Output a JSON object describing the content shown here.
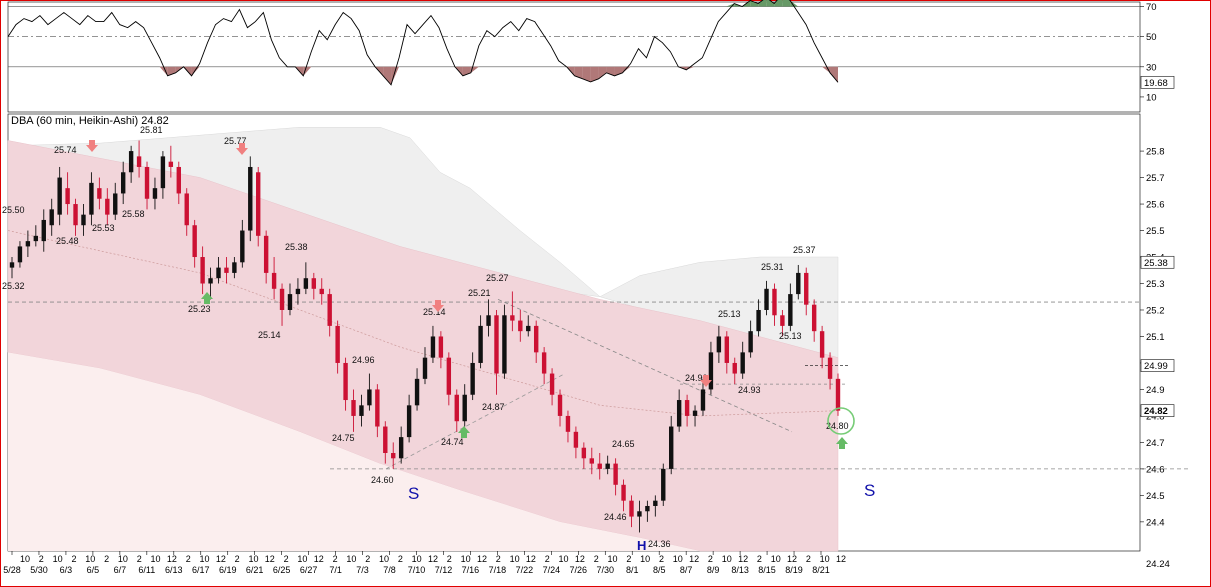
{
  "chart_data": {
    "type": "candlestick",
    "title": "DBA (60 min, Heikin-Ashi) 24.82",
    "last_price": 24.82,
    "price_axis": {
      "ticks": [
        24.4,
        24.5,
        24.6,
        24.7,
        24.8,
        24.9,
        25.0,
        25.1,
        25.2,
        25.3,
        25.4,
        25.5,
        25.6,
        25.7,
        25.8
      ],
      "ylim": [
        24.29,
        25.94
      ],
      "bottom_label": "24.24",
      "tags": [
        {
          "label": "25.38",
          "value": 25.38,
          "color": "#ffffff"
        },
        {
          "label": "24.99",
          "value": 24.99,
          "color": "#ffffff"
        },
        {
          "label": "24.82",
          "value": 24.82,
          "color": "#ffffff"
        }
      ]
    },
    "x_axis": {
      "hour_labels": [
        "10",
        "2",
        "10",
        "2",
        "10",
        "2",
        "10",
        "2",
        "10",
        "12",
        "2",
        "10",
        "12",
        "2",
        "10",
        "12",
        "2",
        "10",
        "12",
        "2",
        "10",
        "2",
        "10",
        "2",
        "10",
        "12",
        "2",
        "10",
        "12",
        "2",
        "10",
        "12",
        "2",
        "10",
        "12",
        "2",
        "10",
        "2",
        "10",
        "2",
        "10",
        "12",
        "2",
        "10",
        "12",
        "2",
        "10",
        "12",
        "2",
        "10",
        "12"
      ],
      "date_labels": [
        "5/28",
        "5/30",
        "6/3",
        "6/5",
        "6/7",
        "6/11",
        "6/13",
        "6/17",
        "6/19",
        "6/21",
        "6/25",
        "6/27",
        "7/1",
        "7/3",
        "7/8",
        "7/10",
        "7/12",
        "7/16",
        "7/18",
        "7/22",
        "7/24",
        "7/26",
        "7/30",
        "8/1",
        "8/5",
        "8/7",
        "8/9",
        "8/13",
        "8/15",
        "8/19",
        "8/21"
      ]
    },
    "annotations": [
      {
        "text": "25.50",
        "value": 25.5
      },
      {
        "text": "25.32",
        "value": 25.32
      },
      {
        "text": "25.74",
        "value": 25.74
      },
      {
        "text": "25.48",
        "value": 25.48
      },
      {
        "text": "25.53",
        "value": 25.53
      },
      {
        "text": "25.81",
        "value": 25.81
      },
      {
        "text": "25.58",
        "value": 25.58
      },
      {
        "text": "25.23",
        "value": 25.23
      },
      {
        "text": "25.77",
        "value": 25.77
      },
      {
        "text": "25.38",
        "value": 25.38
      },
      {
        "text": "25.14",
        "value": 25.14
      },
      {
        "text": "24.96",
        "value": 24.96
      },
      {
        "text": "24.75",
        "value": 24.75
      },
      {
        "text": "24.60",
        "value": 24.6
      },
      {
        "text": "25.14",
        "value": 25.14
      },
      {
        "text": "24.74",
        "value": 24.74
      },
      {
        "text": "25.21",
        "value": 25.21
      },
      {
        "text": "25.27",
        "value": 25.27
      },
      {
        "text": "24.87",
        "value": 24.87
      },
      {
        "text": "24.65",
        "value": 24.65
      },
      {
        "text": "24.46",
        "value": 24.46
      },
      {
        "text": "24.36",
        "value": 24.36
      },
      {
        "text": "24.90",
        "value": 24.9
      },
      {
        "text": "25.13",
        "value": 25.13
      },
      {
        "text": "24.93",
        "value": 24.93
      },
      {
        "text": "25.31",
        "value": 25.31
      },
      {
        "text": "25.13",
        "value": 25.13
      },
      {
        "text": "25.37",
        "value": 25.37
      },
      {
        "text": "24.80",
        "value": 24.8
      }
    ],
    "pattern_labels": [
      "S",
      "S",
      "H"
    ],
    "support_line": 24.6,
    "resistance_line": 25.23,
    "rsi": {
      "name": "RSI",
      "ticks": [
        10,
        30,
        50,
        70
      ],
      "ylim": [
        0,
        73
      ],
      "last_value_label": "19.68",
      "last_value": 19.68,
      "values": [
        50,
        58,
        62,
        60,
        64,
        58,
        62,
        66,
        62,
        58,
        64,
        60,
        60,
        66,
        58,
        56,
        60,
        56,
        46,
        36,
        24,
        26,
        30,
        24,
        32,
        46,
        58,
        62,
        60,
        68,
        56,
        60,
        66,
        48,
        36,
        30,
        30,
        24,
        40,
        54,
        48,
        58,
        66,
        62,
        54,
        38,
        30,
        24,
        18,
        36,
        58,
        52,
        58,
        64,
        56,
        42,
        30,
        24,
        26,
        44,
        54,
        50,
        56,
        60,
        54,
        62,
        60,
        52,
        44,
        34,
        30,
        24,
        22,
        20,
        22,
        26,
        24,
        26,
        32,
        42,
        36,
        50,
        46,
        40,
        30,
        28,
        32,
        36,
        48,
        60,
        66,
        72,
        70,
        74,
        72,
        76,
        72,
        78,
        74,
        66,
        58,
        46,
        36,
        26,
        19.68
      ]
    },
    "ohlc": [
      [
        25.36,
        25.4,
        25.32,
        25.38
      ],
      [
        25.38,
        25.46,
        25.36,
        25.44
      ],
      [
        25.44,
        25.5,
        25.4,
        25.46
      ],
      [
        25.46,
        25.52,
        25.44,
        25.48
      ],
      [
        25.46,
        25.58,
        25.42,
        25.54
      ],
      [
        25.52,
        25.62,
        25.48,
        25.58
      ],
      [
        25.56,
        25.74,
        25.52,
        25.7
      ],
      [
        25.66,
        25.72,
        25.56,
        25.6
      ],
      [
        25.6,
        25.62,
        25.48,
        25.52
      ],
      [
        25.52,
        25.6,
        25.48,
        25.56
      ],
      [
        25.56,
        25.72,
        25.52,
        25.68
      ],
      [
        25.66,
        25.7,
        25.58,
        25.62
      ],
      [
        25.62,
        25.66,
        25.52,
        25.56
      ],
      [
        25.56,
        25.68,
        25.54,
        25.64
      ],
      [
        25.64,
        25.76,
        25.6,
        25.72
      ],
      [
        25.72,
        25.82,
        25.68,
        25.8
      ],
      [
        25.78,
        25.84,
        25.7,
        25.74
      ],
      [
        25.74,
        25.76,
        25.58,
        25.62
      ],
      [
        25.62,
        25.7,
        25.58,
        25.66
      ],
      [
        25.66,
        25.8,
        25.62,
        25.78
      ],
      [
        25.76,
        25.82,
        25.7,
        25.74
      ],
      [
        25.74,
        25.76,
        25.6,
        25.64
      ],
      [
        25.64,
        25.66,
        25.48,
        25.52
      ],
      [
        25.52,
        25.54,
        25.36,
        25.4
      ],
      [
        25.4,
        25.44,
        25.26,
        25.3
      ],
      [
        25.3,
        25.36,
        25.24,
        25.32
      ],
      [
        25.32,
        25.4,
        25.3,
        25.36
      ],
      [
        25.36,
        25.4,
        25.3,
        25.34
      ],
      [
        25.34,
        25.4,
        25.32,
        25.38
      ],
      [
        25.38,
        25.54,
        25.36,
        25.5
      ],
      [
        25.5,
        25.78,
        25.46,
        25.74
      ],
      [
        25.72,
        25.74,
        25.44,
        25.48
      ],
      [
        25.48,
        25.5,
        25.3,
        25.34
      ],
      [
        25.34,
        25.4,
        25.24,
        25.28
      ],
      [
        25.28,
        25.3,
        25.14,
        25.2
      ],
      [
        25.2,
        25.3,
        25.18,
        25.26
      ],
      [
        25.26,
        25.32,
        25.22,
        25.28
      ],
      [
        25.28,
        25.38,
        25.26,
        25.32
      ],
      [
        25.32,
        25.34,
        25.24,
        25.28
      ],
      [
        25.28,
        25.32,
        25.22,
        25.26
      ],
      [
        25.26,
        25.28,
        25.1,
        25.14
      ],
      [
        25.14,
        25.16,
        24.96,
        25.0
      ],
      [
        25.0,
        25.02,
        24.82,
        24.86
      ],
      [
        24.86,
        24.9,
        24.74,
        24.8
      ],
      [
        24.8,
        24.88,
        24.76,
        24.84
      ],
      [
        24.84,
        24.96,
        24.82,
        24.9
      ],
      [
        24.9,
        24.92,
        24.72,
        24.76
      ],
      [
        24.76,
        24.78,
        24.62,
        24.66
      ],
      [
        24.66,
        24.7,
        24.6,
        24.64
      ],
      [
        24.64,
        24.76,
        24.62,
        24.72
      ],
      [
        24.72,
        24.88,
        24.7,
        24.84
      ],
      [
        24.84,
        24.98,
        24.82,
        24.94
      ],
      [
        24.94,
        25.06,
        24.92,
        25.02
      ],
      [
        25.02,
        25.14,
        25.0,
        25.1
      ],
      [
        25.1,
        25.12,
        24.98,
        25.02
      ],
      [
        25.02,
        25.04,
        24.84,
        24.88
      ],
      [
        24.88,
        24.9,
        24.74,
        24.78
      ],
      [
        24.78,
        24.92,
        24.76,
        24.88
      ],
      [
        24.88,
        25.04,
        24.86,
        25.0
      ],
      [
        25.0,
        25.18,
        24.98,
        25.14
      ],
      [
        25.14,
        25.24,
        25.1,
        25.18
      ],
      [
        25.18,
        25.2,
        24.88,
        24.96
      ],
      [
        24.96,
        25.22,
        24.94,
        25.18
      ],
      [
        25.18,
        25.27,
        25.12,
        25.16
      ],
      [
        25.16,
        25.2,
        25.08,
        25.12
      ],
      [
        25.12,
        25.18,
        25.1,
        25.14
      ],
      [
        25.14,
        25.16,
        25.0,
        25.04
      ],
      [
        25.04,
        25.06,
        24.92,
        24.96
      ],
      [
        24.96,
        24.98,
        24.84,
        24.88
      ],
      [
        24.88,
        24.9,
        24.76,
        24.8
      ],
      [
        24.8,
        24.82,
        24.7,
        24.74
      ],
      [
        24.74,
        24.76,
        24.64,
        24.68
      ],
      [
        24.68,
        24.7,
        24.6,
        24.64
      ],
      [
        24.64,
        24.68,
        24.58,
        24.62
      ],
      [
        24.62,
        24.66,
        24.56,
        24.6
      ],
      [
        24.6,
        24.65,
        24.58,
        24.62
      ],
      [
        24.62,
        24.64,
        24.5,
        24.54
      ],
      [
        24.54,
        24.56,
        24.44,
        24.48
      ],
      [
        24.48,
        24.5,
        24.38,
        24.42
      ],
      [
        24.42,
        24.48,
        24.36,
        24.44
      ],
      [
        24.44,
        24.48,
        24.4,
        24.46
      ],
      [
        24.46,
        24.5,
        24.42,
        24.48
      ],
      [
        24.48,
        24.62,
        24.46,
        24.6
      ],
      [
        24.6,
        24.8,
        24.58,
        24.76
      ],
      [
        24.76,
        24.9,
        24.74,
        24.86
      ],
      [
        24.86,
        24.88,
        24.76,
        24.8
      ],
      [
        24.8,
        24.84,
        24.76,
        24.82
      ],
      [
        24.82,
        24.94,
        24.8,
        24.9
      ],
      [
        24.9,
        25.08,
        24.88,
        25.04
      ],
      [
        25.04,
        25.14,
        25.0,
        25.1
      ],
      [
        25.1,
        25.12,
        24.96,
        25.0
      ],
      [
        25.0,
        25.02,
        24.92,
        24.96
      ],
      [
        24.96,
        25.08,
        24.94,
        25.04
      ],
      [
        25.04,
        25.16,
        25.02,
        25.12
      ],
      [
        25.12,
        25.24,
        25.1,
        25.2
      ],
      [
        25.2,
        25.31,
        25.18,
        25.28
      ],
      [
        25.28,
        25.3,
        25.14,
        25.18
      ],
      [
        25.18,
        25.2,
        25.1,
        25.14
      ],
      [
        25.14,
        25.3,
        25.12,
        25.26
      ],
      [
        25.26,
        25.37,
        25.24,
        25.34
      ],
      [
        25.34,
        25.36,
        25.18,
        25.22
      ],
      [
        25.22,
        25.24,
        25.08,
        25.12
      ],
      [
        25.12,
        25.14,
        24.98,
        25.02
      ],
      [
        25.02,
        25.04,
        24.9,
        24.94
      ],
      [
        24.94,
        24.96,
        24.8,
        24.82
      ]
    ]
  },
  "header": {
    "title": "DBA (60 min, Heikin-Ashi) 24.82"
  }
}
